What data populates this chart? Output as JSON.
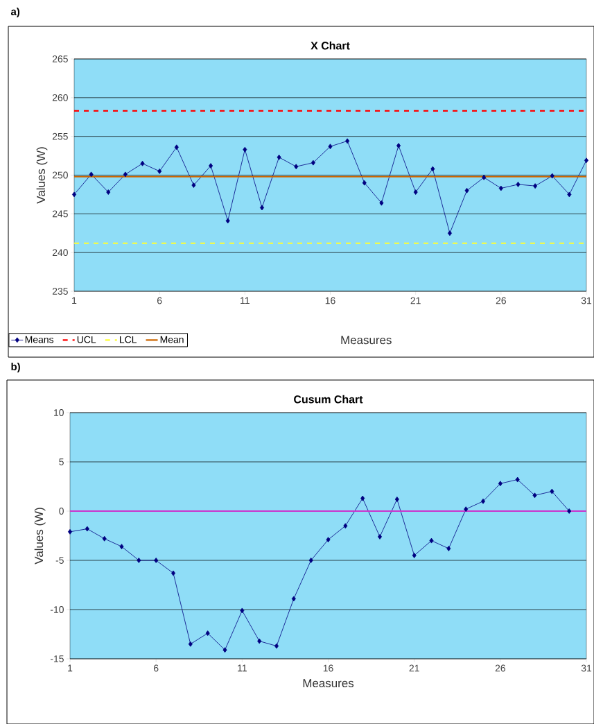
{
  "chart_data": [
    {
      "type": "line",
      "title": "X Chart",
      "xlabel": "Measures",
      "ylabel": "Values (W)",
      "annotations": [
        "a)"
      ],
      "x": [
        1,
        2,
        3,
        4,
        5,
        6,
        7,
        8,
        9,
        10,
        11,
        12,
        13,
        14,
        15,
        16,
        17,
        18,
        19,
        20,
        21,
        22,
        23,
        24,
        25,
        26,
        27,
        28,
        29,
        30,
        31
      ],
      "series": [
        {
          "name": "Means",
          "color": "#000080",
          "values": [
            247.5,
            250.1,
            247.8,
            250.1,
            251.5,
            250.5,
            253.6,
            248.7,
            251.2,
            244.1,
            253.3,
            245.8,
            252.3,
            251.1,
            251.6,
            253.7,
            254.4,
            249.0,
            246.4,
            253.8,
            247.8,
            250.8,
            242.5,
            248.0,
            249.7,
            248.3,
            248.8,
            248.6,
            249.9,
            247.5,
            251.9
          ]
        }
      ],
      "ref_lines": [
        {
          "axis": "y",
          "value": 258.3,
          "label": "UCL",
          "color": "#ff0000",
          "line_style": "dashed"
        },
        {
          "axis": "y",
          "value": 241.2,
          "label": "LCL",
          "color": "#ffff33",
          "line_style": "dashed"
        },
        {
          "axis": "y",
          "value": 249.8,
          "label": "Mean",
          "color": "#cc6600",
          "line_style": "solid"
        }
      ],
      "xlim": [
        1,
        31
      ],
      "xticks": [
        1,
        6,
        11,
        16,
        21,
        26,
        31
      ],
      "ylim": [
        235,
        265
      ],
      "yticks": [
        235,
        240,
        245,
        250,
        255,
        260,
        265
      ],
      "grid": "y",
      "legend": "bottom left",
      "marker": "diamond",
      "line_style": "solid"
    },
    {
      "type": "line",
      "title": "Cusum Chart",
      "xlabel": "Measures",
      "ylabel": "Values (W)",
      "annotations": [
        "b)"
      ],
      "x": [
        1,
        2,
        3,
        4,
        5,
        6,
        7,
        8,
        9,
        10,
        11,
        12,
        13,
        14,
        15,
        16,
        17,
        18,
        19,
        20,
        21,
        22,
        23,
        24,
        25,
        26,
        27,
        28,
        29,
        30
      ],
      "series": [
        {
          "color": "#000080",
          "values": [
            -2.1,
            -1.8,
            -2.8,
            -3.6,
            -5.0,
            -5.0,
            -6.3,
            -13.5,
            -12.4,
            -14.1,
            -10.1,
            -13.2,
            -13.7,
            -8.9,
            -5.0,
            -2.9,
            -1.5,
            1.3,
            -2.6,
            1.2,
            -4.5,
            -3.0,
            -3.8,
            0.2,
            1.0,
            2.8,
            3.2,
            1.6,
            2.0,
            0.0
          ]
        }
      ],
      "ref_lines": [
        {
          "axis": "y",
          "value": 0,
          "color": "#cc33cc",
          "line_style": "solid"
        }
      ],
      "xlim": [
        1,
        31
      ],
      "xticks": [
        1,
        6,
        11,
        16,
        21,
        26,
        31
      ],
      "ylim": [
        -15,
        10
      ],
      "yticks": [
        -15,
        -10,
        -5,
        0,
        5,
        10
      ],
      "grid": "y",
      "marker": "diamond",
      "line_style": "solid"
    }
  ]
}
